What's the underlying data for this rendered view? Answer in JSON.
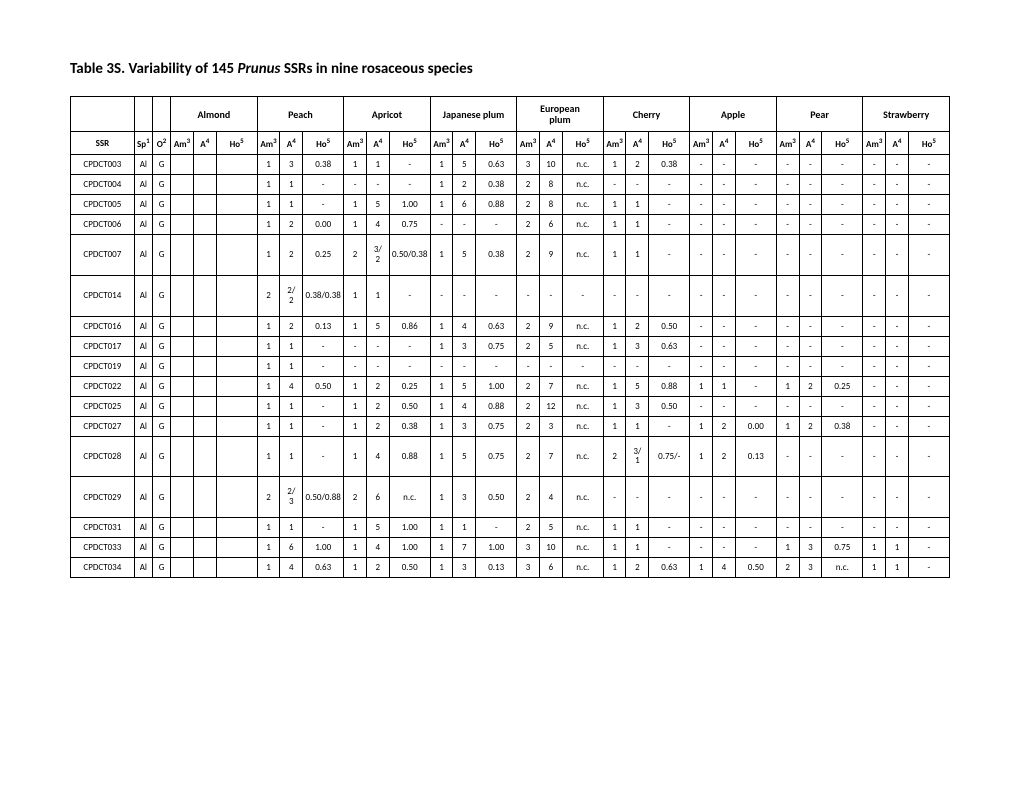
{
  "title_a": "Table 3S. Variability of 145 ",
  "title_em": "Prunus",
  "title_b": " SSRs in nine rosaceous species",
  "species": [
    "Almond",
    "Peach",
    "Apricot",
    "Japanese plum",
    "European plum",
    "Cherry",
    "Apple",
    "Pear",
    "Strawberry"
  ],
  "sub": {
    "ssr": "SSR",
    "sp": "Sp",
    "o": "O",
    "am": "Am",
    "a": "A",
    "ho": "Ho"
  },
  "rows": [
    {
      "ssr": "CPDCT003",
      "sp": "Al",
      "o": "G",
      "c": [
        [
          "",
          "",
          ""
        ],
        [
          "1",
          "3",
          "0.38"
        ],
        [
          "1",
          "1",
          "-"
        ],
        [
          "1",
          "5",
          "0.63"
        ],
        [
          "3",
          "10",
          "n.c."
        ],
        [
          "1",
          "2",
          "0.38"
        ],
        [
          "-",
          "-",
          "-"
        ],
        [
          "-",
          "-",
          "-"
        ],
        [
          "-",
          "-",
          "-"
        ]
      ]
    },
    {
      "ssr": "CPDCT004",
      "sp": "Al",
      "o": "G",
      "c": [
        [
          "",
          "",
          ""
        ],
        [
          "1",
          "1",
          "-"
        ],
        [
          "-",
          "-",
          "-"
        ],
        [
          "1",
          "2",
          "0.38"
        ],
        [
          "2",
          "8",
          "n.c."
        ],
        [
          "-",
          "-",
          "-"
        ],
        [
          "-",
          "-",
          "-"
        ],
        [
          "-",
          "-",
          "-"
        ],
        [
          "-",
          "-",
          "-"
        ]
      ]
    },
    {
      "ssr": "CPDCT005",
      "sp": "Al",
      "o": "G",
      "c": [
        [
          "",
          "",
          ""
        ],
        [
          "1",
          "1",
          "-"
        ],
        [
          "1",
          "5",
          "1.00"
        ],
        [
          "1",
          "6",
          "0.88"
        ],
        [
          "2",
          "8",
          "n.c."
        ],
        [
          "1",
          "1",
          "-"
        ],
        [
          "-",
          "-",
          "-"
        ],
        [
          "-",
          "-",
          "-"
        ],
        [
          "-",
          "-",
          "-"
        ]
      ]
    },
    {
      "ssr": "CPDCT006",
      "sp": "Al",
      "o": "G",
      "c": [
        [
          "",
          "",
          ""
        ],
        [
          "1",
          "2",
          "0.00"
        ],
        [
          "1",
          "4",
          "0.75"
        ],
        [
          "-",
          "-",
          "-"
        ],
        [
          "2",
          "6",
          "n.c."
        ],
        [
          "1",
          "1",
          "-"
        ],
        [
          "-",
          "-",
          "-"
        ],
        [
          "-",
          "-",
          "-"
        ],
        [
          "-",
          "-",
          "-"
        ]
      ]
    },
    {
      "ssr": "CPDCT007",
      "sp": "Al",
      "o": "G",
      "tall": true,
      "c": [
        [
          "",
          "",
          ""
        ],
        [
          "1",
          "2",
          "0.25"
        ],
        [
          "2",
          "3/\n2",
          "0.50/0.38"
        ],
        [
          "1",
          "5",
          "0.38"
        ],
        [
          "2",
          "9",
          "n.c."
        ],
        [
          "1",
          "1",
          "-"
        ],
        [
          "-",
          "-",
          "-"
        ],
        [
          "-",
          "-",
          "-"
        ],
        [
          "-",
          "-",
          "-"
        ]
      ]
    },
    {
      "ssr": "CPDCT014",
      "sp": "Al",
      "o": "G",
      "tall": true,
      "c": [
        [
          "",
          "",
          ""
        ],
        [
          "2",
          "2/\n2",
          "0.38/0.38"
        ],
        [
          "1",
          "1",
          "-"
        ],
        [
          "-",
          "-",
          "-"
        ],
        [
          "-",
          "-",
          "-"
        ],
        [
          "-",
          "-",
          "-"
        ],
        [
          "-",
          "-",
          "-"
        ],
        [
          "-",
          "-",
          "-"
        ],
        [
          "-",
          "-",
          "-"
        ]
      ]
    },
    {
      "ssr": "CPDCT016",
      "sp": "Al",
      "o": "G",
      "c": [
        [
          "",
          "",
          ""
        ],
        [
          "1",
          "2",
          "0.13"
        ],
        [
          "1",
          "5",
          "0.86"
        ],
        [
          "1",
          "4",
          "0.63"
        ],
        [
          "2",
          "9",
          "n.c."
        ],
        [
          "1",
          "2",
          "0.50"
        ],
        [
          "-",
          "-",
          "-"
        ],
        [
          "-",
          "-",
          "-"
        ],
        [
          "-",
          "-",
          "-"
        ]
      ]
    },
    {
      "ssr": "CPDCT017",
      "sp": "Al",
      "o": "G",
      "c": [
        [
          "",
          "",
          ""
        ],
        [
          "1",
          "1",
          "-"
        ],
        [
          "-",
          "-",
          "-"
        ],
        [
          "1",
          "3",
          "0.75"
        ],
        [
          "2",
          "5",
          "n.c."
        ],
        [
          "1",
          "3",
          "0.63"
        ],
        [
          "-",
          "-",
          "-"
        ],
        [
          "-",
          "-",
          "-"
        ],
        [
          "-",
          "-",
          "-"
        ]
      ]
    },
    {
      "ssr": "CPDCT019",
      "sp": "Al",
      "o": "G",
      "c": [
        [
          "",
          "",
          ""
        ],
        [
          "1",
          "1",
          "-"
        ],
        [
          "-",
          "-",
          "-"
        ],
        [
          "-",
          "-",
          "-"
        ],
        [
          "-",
          "-",
          "-"
        ],
        [
          "-",
          "-",
          "-"
        ],
        [
          "-",
          "-",
          "-"
        ],
        [
          "-",
          "-",
          "-"
        ],
        [
          "-",
          "-",
          "-"
        ]
      ]
    },
    {
      "ssr": "CPDCT022",
      "sp": "Al",
      "o": "G",
      "c": [
        [
          "",
          "",
          ""
        ],
        [
          "1",
          "4",
          "0.50"
        ],
        [
          "1",
          "2",
          "0.25"
        ],
        [
          "1",
          "5",
          "1.00"
        ],
        [
          "2",
          "7",
          "n.c."
        ],
        [
          "1",
          "5",
          "0.88"
        ],
        [
          "1",
          "1",
          "-"
        ],
        [
          "1",
          "2",
          "0.25"
        ],
        [
          "-",
          "-",
          "-"
        ]
      ]
    },
    {
      "ssr": "CPDCT025",
      "sp": "Al",
      "o": "G",
      "c": [
        [
          "",
          "",
          ""
        ],
        [
          "1",
          "1",
          "-"
        ],
        [
          "1",
          "2",
          "0.50"
        ],
        [
          "1",
          "4",
          "0.88"
        ],
        [
          "2",
          "12",
          "n.c."
        ],
        [
          "1",
          "3",
          "0.50"
        ],
        [
          "-",
          "-",
          "-"
        ],
        [
          "-",
          "-",
          "-"
        ],
        [
          "-",
          "-",
          "-"
        ]
      ]
    },
    {
      "ssr": "CPDCT027",
      "sp": "Al",
      "o": "G",
      "c": [
        [
          "",
          "",
          ""
        ],
        [
          "1",
          "1",
          "-"
        ],
        [
          "1",
          "2",
          "0.38"
        ],
        [
          "1",
          "3",
          "0.75"
        ],
        [
          "2",
          "3",
          "n.c."
        ],
        [
          "1",
          "1",
          "-"
        ],
        [
          "1",
          "2",
          "0.00"
        ],
        [
          "1",
          "2",
          "0.38"
        ],
        [
          "-",
          "-",
          "-"
        ]
      ]
    },
    {
      "ssr": "CPDCT028",
      "sp": "Al",
      "o": "G",
      "tall": true,
      "c": [
        [
          "",
          "",
          ""
        ],
        [
          "1",
          "1",
          "-"
        ],
        [
          "1",
          "4",
          "0.88"
        ],
        [
          "1",
          "5",
          "0.75"
        ],
        [
          "2",
          "7",
          "n.c."
        ],
        [
          "2",
          "3/\n1",
          "0.75/-"
        ],
        [
          "1",
          "2",
          "0.13"
        ],
        [
          "-",
          "-",
          "-"
        ],
        [
          "-",
          "-",
          "-"
        ]
      ]
    },
    {
      "ssr": "CPDCT029",
      "sp": "Al",
      "o": "G",
      "tall": true,
      "c": [
        [
          "",
          "",
          ""
        ],
        [
          "2",
          "2/\n3",
          "0.50/0.88"
        ],
        [
          "2",
          "6",
          "n.c."
        ],
        [
          "1",
          "3",
          "0.50"
        ],
        [
          "2",
          "4",
          "n.c."
        ],
        [
          "-",
          "-",
          "-"
        ],
        [
          "-",
          "-",
          "-"
        ],
        [
          "-",
          "-",
          "-"
        ],
        [
          "-",
          "-",
          "-"
        ]
      ]
    },
    {
      "ssr": "CPDCT031",
      "sp": "Al",
      "o": "G",
      "c": [
        [
          "",
          "",
          ""
        ],
        [
          "1",
          "1",
          "-"
        ],
        [
          "1",
          "5",
          "1.00"
        ],
        [
          "1",
          "1",
          "-"
        ],
        [
          "2",
          "5",
          "n.c."
        ],
        [
          "1",
          "1",
          "-"
        ],
        [
          "-",
          "-",
          "-"
        ],
        [
          "-",
          "-",
          "-"
        ],
        [
          "-",
          "-",
          "-"
        ]
      ]
    },
    {
      "ssr": "CPDCT033",
      "sp": "Al",
      "o": "G",
      "c": [
        [
          "",
          "",
          ""
        ],
        [
          "1",
          "6",
          "1.00"
        ],
        [
          "1",
          "4",
          "1.00"
        ],
        [
          "1",
          "7",
          "1.00"
        ],
        [
          "3",
          "10",
          "n.c."
        ],
        [
          "1",
          "1",
          "-"
        ],
        [
          "-",
          "-",
          "-"
        ],
        [
          "1",
          "3",
          "0.75"
        ],
        [
          "1",
          "1",
          "-"
        ]
      ]
    },
    {
      "ssr": "CPDCT034",
      "sp": "Al",
      "o": "G",
      "c": [
        [
          "",
          "",
          ""
        ],
        [
          "1",
          "4",
          "0.63"
        ],
        [
          "1",
          "2",
          "0.50"
        ],
        [
          "1",
          "3",
          "0.13"
        ],
        [
          "3",
          "6",
          "n.c."
        ],
        [
          "1",
          "2",
          "0.63"
        ],
        [
          "1",
          "4",
          "0.50"
        ],
        [
          "2",
          "3",
          "n.c."
        ],
        [
          "1",
          "1",
          "-"
        ]
      ]
    }
  ]
}
